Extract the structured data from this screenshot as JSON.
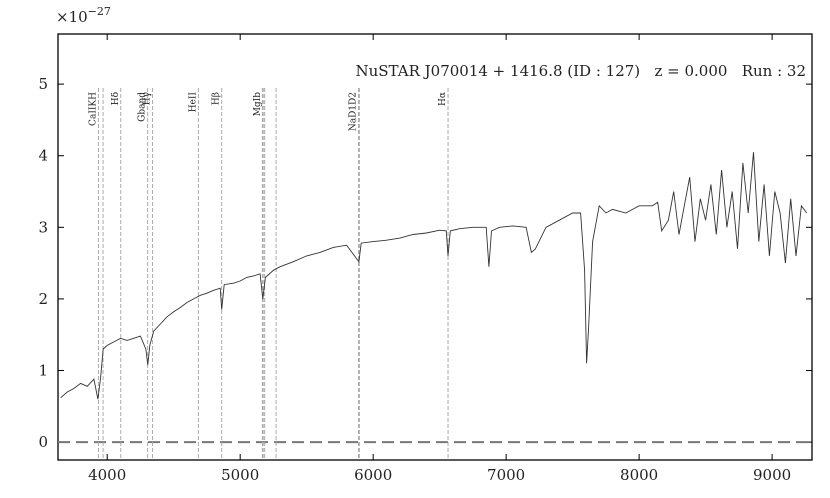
{
  "chart_data": {
    "type": "line",
    "title": "NuSTAR J070014 + 1416.8 (ID : 127)   z = 0.000   Run : 32",
    "y_offset_label": {
      "base": "×10",
      "exponent": "−27"
    },
    "x": [
      3650,
      3700,
      3750,
      3800,
      3850,
      3900,
      3930,
      3950,
      3970,
      4000,
      4050,
      4100,
      4150,
      4200,
      4250,
      4290,
      4305,
      4320,
      4350,
      4400,
      4450,
      4500,
      4550,
      4600,
      4650,
      4700,
      4750,
      4800,
      4850,
      4861,
      4880,
      4950,
      5000,
      5050,
      5100,
      5150,
      5170,
      5190,
      5250,
      5300,
      5400,
      5500,
      5600,
      5700,
      5800,
      5880,
      5893,
      5910,
      6000,
      6100,
      6200,
      6300,
      6400,
      6500,
      6550,
      6563,
      6580,
      6650,
      6750,
      6850,
      6870,
      6890,
      6950,
      7050,
      7150,
      7190,
      7220,
      7300,
      7400,
      7500,
      7560,
      7590,
      7605,
      7620,
      7650,
      7700,
      7750,
      7800,
      7900,
      8000,
      8100,
      8140,
      8170,
      8220,
      8260,
      8300,
      8340,
      8380,
      8420,
      8460,
      8500,
      8540,
      8580,
      8620,
      8660,
      8700,
      8740,
      8780,
      8820,
      8860,
      8900,
      8940,
      8980,
      9020,
      9060,
      9100,
      9140,
      9180,
      9220,
      9260
    ],
    "values": [
      0.62,
      0.7,
      0.75,
      0.82,
      0.78,
      0.88,
      0.6,
      0.9,
      1.3,
      1.35,
      1.4,
      1.45,
      1.42,
      1.45,
      1.48,
      1.3,
      1.08,
      1.35,
      1.55,
      1.65,
      1.75,
      1.82,
      1.88,
      1.95,
      2.0,
      2.05,
      2.08,
      2.12,
      2.15,
      1.85,
      2.2,
      2.22,
      2.25,
      2.3,
      2.32,
      2.35,
      2.0,
      2.3,
      2.4,
      2.45,
      2.52,
      2.6,
      2.65,
      2.72,
      2.75,
      2.55,
      2.52,
      2.78,
      2.8,
      2.82,
      2.85,
      2.9,
      2.92,
      2.96,
      2.95,
      2.6,
      2.95,
      2.98,
      3.0,
      3.0,
      2.45,
      2.95,
      3.0,
      3.02,
      3.0,
      2.65,
      2.7,
      3.0,
      3.1,
      3.2,
      3.2,
      2.4,
      1.1,
      1.6,
      2.8,
      3.3,
      3.2,
      3.25,
      3.2,
      3.3,
      3.3,
      3.35,
      2.95,
      3.1,
      3.5,
      2.9,
      3.3,
      3.7,
      2.8,
      3.4,
      3.1,
      3.6,
      2.9,
      3.8,
      3.0,
      3.5,
      2.7,
      3.9,
      3.2,
      4.05,
      2.8,
      3.6,
      2.6,
      3.5,
      3.2,
      2.5,
      3.4,
      2.6,
      3.3,
      3.2
    ],
    "color": "#333333",
    "lines": {
      "x": [
        3934,
        3969,
        4102,
        4304,
        4341,
        4686,
        4861,
        5167,
        5173,
        5184,
        5270,
        5890,
        5896,
        6563
      ],
      "labels": [
        "CaIIKH",
        null,
        "Hδ",
        "Gband",
        "Hγ",
        "HeII",
        "Hβ",
        null,
        "MgIb",
        null,
        null,
        "NaD1D2",
        null,
        "Hα"
      ]
    },
    "reference_line": 0,
    "xlim": [
      3630,
      9300
    ],
    "ylim": [
      -0.25,
      5.7
    ],
    "xticks": [
      4000,
      5000,
      6000,
      7000,
      8000,
      9000
    ],
    "yticks": [
      0,
      1,
      2,
      3,
      4,
      5
    ]
  }
}
